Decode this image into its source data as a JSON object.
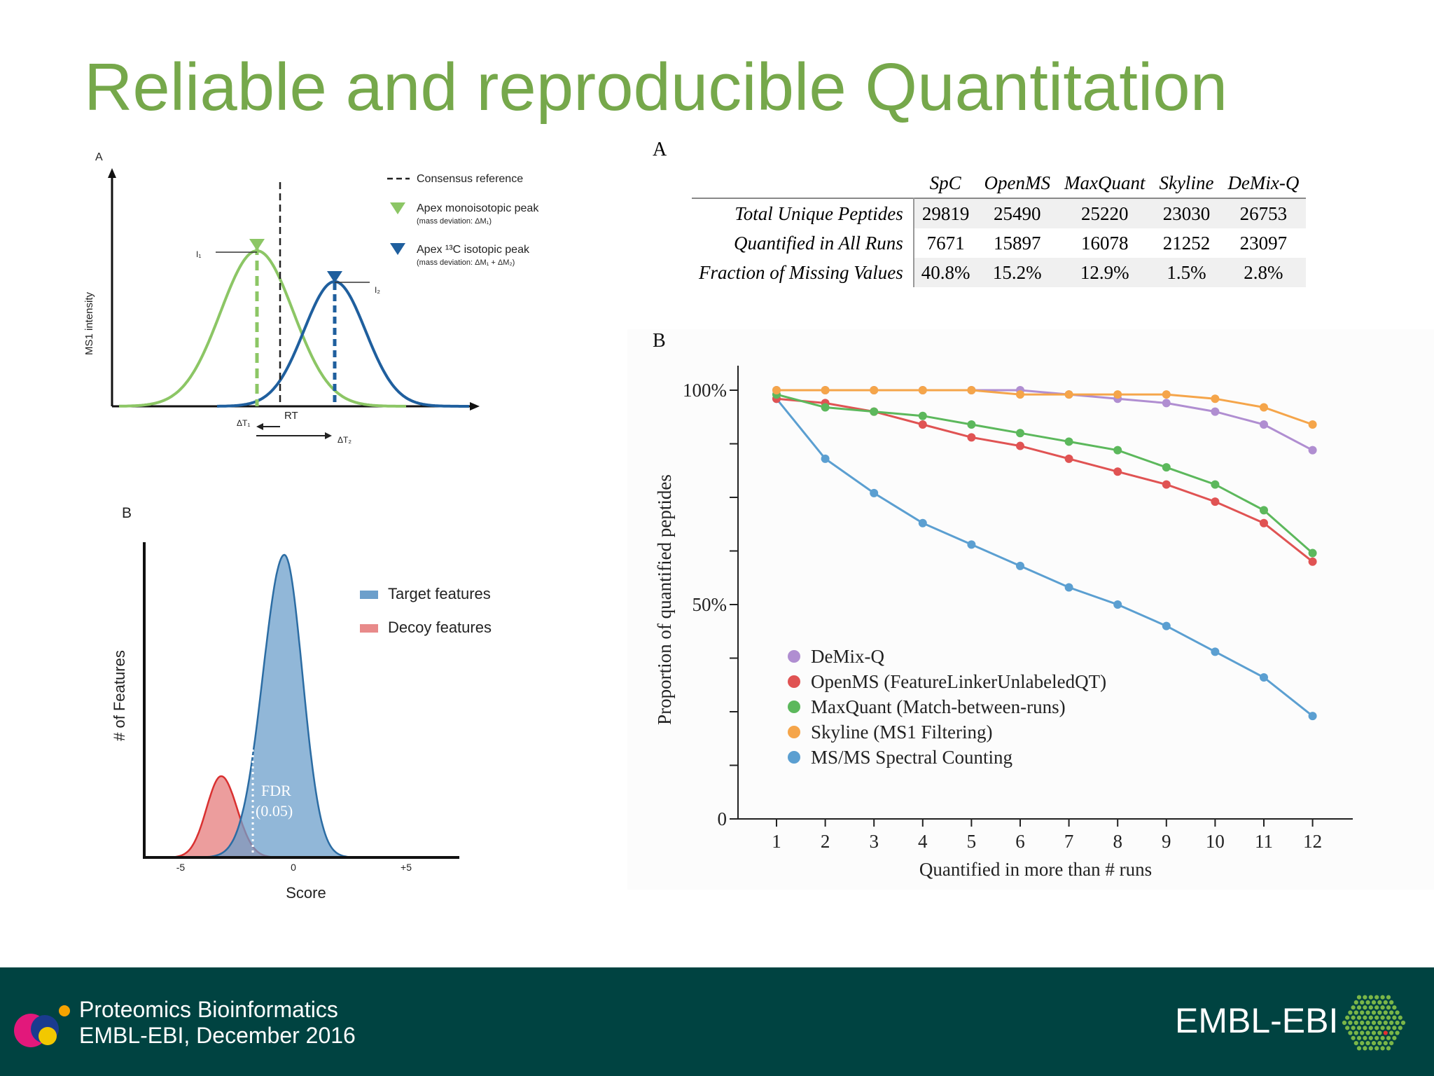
{
  "slide": {
    "title": "Reliable and reproducible Quantitation"
  },
  "footer": {
    "line1": "Proteomics Bioinformatics",
    "line2": "EMBL-EBI, December 2016",
    "brand": "EMBL-EBI",
    "bg_color": "#004341"
  },
  "diagram_a": {
    "label": "A",
    "y_axis": "MS1 intensity",
    "x_label": "RT",
    "i1": "I₁",
    "i2": "I₂",
    "dt1": "ΔT₁",
    "dt2": "ΔT₂",
    "legend": {
      "consensus": "Consensus reference",
      "mono": "Apex monoisotopic peak",
      "mono_sub": "(mass deviation: ΔM₁)",
      "iso": "Apex ¹³C isotopic peak",
      "iso_sub": "(mass deviation: ΔM₁ + ΔM₂)"
    },
    "colors": {
      "mono": "#8cc665",
      "iso": "#1f5f9e"
    }
  },
  "table_a": {
    "label": "A",
    "columns": [
      "SpC",
      "OpenMS",
      "MaxQuant",
      "Skyline",
      "DeMix-Q"
    ],
    "rows": [
      {
        "label": "Total Unique Peptides",
        "values": [
          "29819",
          "25490",
          "25220",
          "23030",
          "26753"
        ]
      },
      {
        "label": "Quantified in All Runs",
        "values": [
          "7671",
          "15897",
          "16078",
          "21252",
          "23097"
        ]
      },
      {
        "label": "Fraction of Missing Values",
        "values": [
          "40.8%",
          "15.2%",
          "12.9%",
          "1.5%",
          "2.8%"
        ]
      }
    ]
  },
  "chart_data": [
    {
      "type": "area",
      "panel_label": "B",
      "xlabel": "Score",
      "ylabel": "# of Features",
      "x_ticks": [
        "-5",
        "0",
        "+5"
      ],
      "xlim": [
        -5,
        5
      ],
      "series": [
        {
          "name": "Target features",
          "color": "#6c9fcb",
          "peak_x": -0.4
        },
        {
          "name": "Decoy features",
          "color": "#e05b5b",
          "peak_x": -3.2
        }
      ],
      "annotation": {
        "line1": "FDR",
        "line2": "(0.05)",
        "x": -1.8
      }
    },
    {
      "type": "line",
      "panel_label": "B",
      "xlabel": "Quantified in more than # runs",
      "ylabel": "Proportion of quantified peptides",
      "x": [
        1,
        2,
        3,
        4,
        5,
        6,
        7,
        8,
        9,
        10,
        11,
        12
      ],
      "ylim": [
        0,
        100
      ],
      "y_ticks": [
        "0",
        "50%",
        "100%"
      ],
      "y_tick_values": [
        0,
        50,
        100
      ],
      "series": [
        {
          "name": "DeMix-Q",
          "color": "#b08ed1",
          "values": [
            100,
            100,
            100,
            100,
            100,
            100,
            99,
            98,
            97,
            95,
            92,
            86
          ]
        },
        {
          "name": "OpenMS (FeatureLinkerUnlabeledQT)",
          "color": "#e05353",
          "values": [
            98,
            97,
            95,
            92,
            89,
            87,
            84,
            81,
            78,
            74,
            69,
            60
          ]
        },
        {
          "name": "MaxQuant (Match-between-runs)",
          "color": "#5cb85c",
          "values": [
            99,
            96,
            95,
            94,
            92,
            90,
            88,
            86,
            82,
            78,
            72,
            62
          ]
        },
        {
          "name": "Skyline (MS1 Filtering)",
          "color": "#f5a54a",
          "values": [
            100,
            100,
            100,
            100,
            100,
            99,
            99,
            99,
            99,
            98,
            96,
            92
          ]
        },
        {
          "name": "MS/MS Spectral Counting",
          "color": "#5b9fd1",
          "values": [
            98,
            84,
            76,
            69,
            64,
            59,
            54,
            50,
            45,
            39,
            33,
            24
          ]
        }
      ]
    }
  ]
}
